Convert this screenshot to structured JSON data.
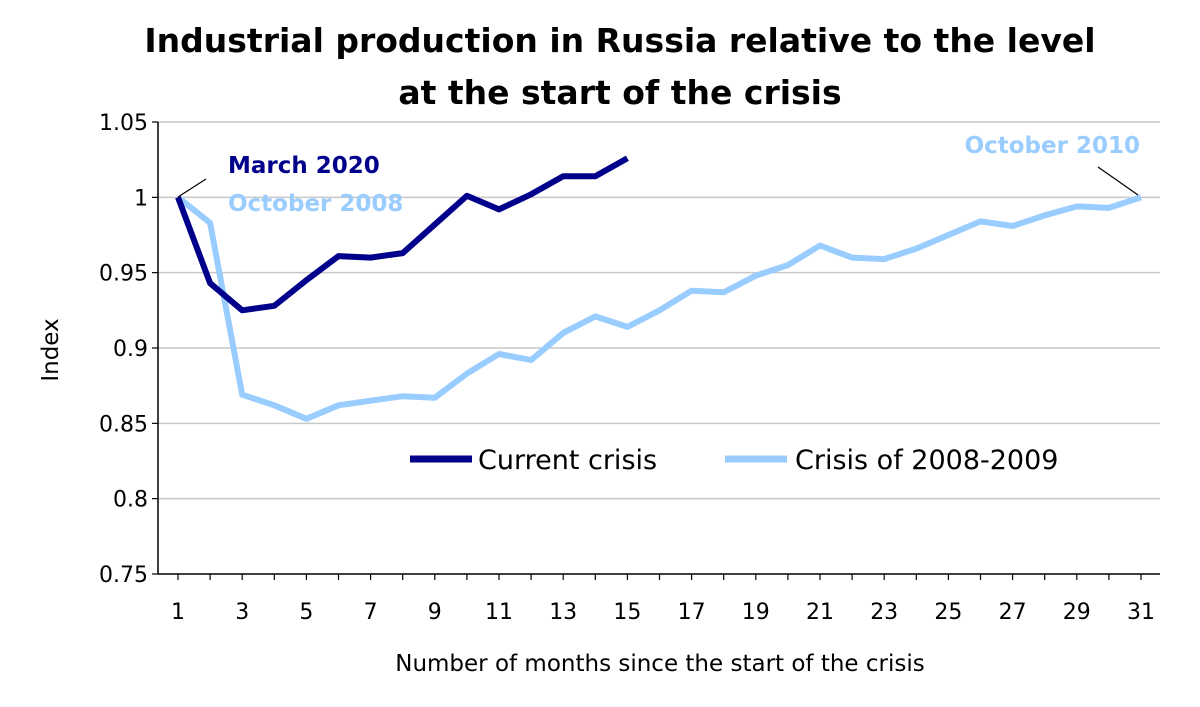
{
  "chart_data": {
    "type": "line",
    "title_line1": "Industrial production in Russia relative to the level",
    "title_line2": "at the start of the crisis",
    "xlabel": "Number of months since the start of the crisis",
    "ylabel": "Index",
    "xlim": [
      1,
      31
    ],
    "ylim": [
      0.75,
      1.05
    ],
    "yticks": [
      "1.05",
      "1",
      "0.95",
      "0.9",
      "0.85",
      "0.8",
      "0.75"
    ],
    "xticks": [
      "1",
      "3",
      "5",
      "7",
      "9",
      "11",
      "13",
      "15",
      "17",
      "19",
      "21",
      "23",
      "25",
      "27",
      "29",
      "31"
    ],
    "grid": "horizontal",
    "legend_position": "center-right",
    "series": [
      {
        "name": "Current crisis",
        "color": "#00008B",
        "x": [
          1,
          2,
          3,
          4,
          5,
          6,
          7,
          8,
          9,
          10,
          11,
          12,
          13,
          14,
          15
        ],
        "values": [
          1.0,
          0.943,
          0.925,
          0.928,
          0.945,
          0.961,
          0.96,
          0.963,
          0.982,
          1.001,
          0.992,
          1.002,
          1.014,
          1.014,
          1.026
        ]
      },
      {
        "name": "Crisis of 2008-2009",
        "color": "#99CCFF",
        "x": [
          1,
          2,
          3,
          4,
          5,
          6,
          7,
          8,
          9,
          10,
          11,
          12,
          13,
          14,
          15,
          16,
          17,
          18,
          19,
          20,
          21,
          22,
          23,
          24,
          25,
          26,
          27,
          28,
          29,
          30,
          31
        ],
        "values": [
          1.0,
          0.983,
          0.869,
          0.862,
          0.853,
          0.862,
          0.865,
          0.868,
          0.867,
          0.883,
          0.896,
          0.892,
          0.91,
          0.921,
          0.914,
          0.925,
          0.938,
          0.937,
          0.948,
          0.955,
          0.968,
          0.96,
          0.959,
          0.966,
          0.975,
          0.984,
          0.981,
          0.988,
          0.994,
          0.993,
          1.0
        ]
      }
    ],
    "annotations": {
      "march2020": {
        "text": "March 2020",
        "color": "#00008B"
      },
      "october2008": {
        "text": "October 2008",
        "color": "#99CCFF"
      },
      "october2010": {
        "text": "October 2010",
        "color": "#99CCFF"
      }
    }
  }
}
